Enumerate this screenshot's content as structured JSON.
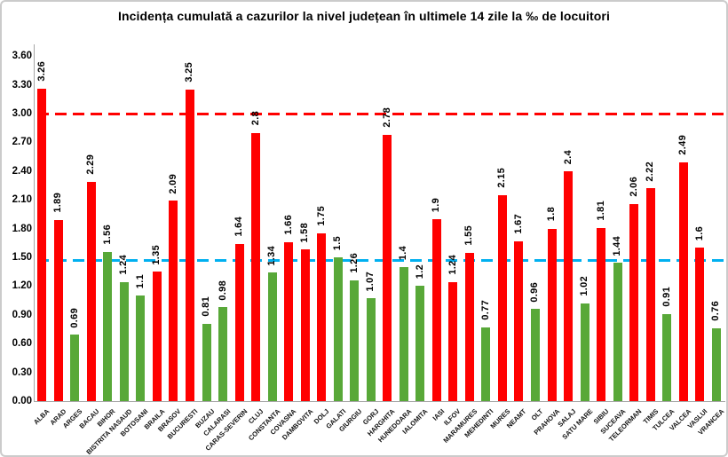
{
  "title": "Incidența cumulată a cazurilor la nivel județean în ultimele 14 zile la ‰ de locuitori",
  "colors": {
    "red": "#FF0000",
    "green": "#58A838",
    "ref_red": "#FF0000",
    "ref_blue": "#00B0F0",
    "axis": "#A6A6A6",
    "text": "#000000",
    "border": "#CBCBCB",
    "background": "#FFFFFF"
  },
  "chart_data": {
    "type": "bar",
    "title": "Incidența cumulată a cazurilor la nivel județean în ultimele 14 zile la ‰ de locuitori",
    "xlabel": "",
    "ylabel": "",
    "ylim": [
      0,
      3.6
    ],
    "ytick_step": 0.3,
    "ytick_labels": [
      "0.00",
      "0.30",
      "0.60",
      "0.90",
      "1.20",
      "1.50",
      "1.80",
      "2.10",
      "2.40",
      "2.70",
      "3.00",
      "3.30",
      "3.60"
    ],
    "grid": false,
    "legend": false,
    "reference_lines": [
      {
        "value": 3.0,
        "color": "#FF0000",
        "style": "dashed"
      },
      {
        "value": 1.47,
        "color": "#00B0F0",
        "style": "dashed"
      }
    ],
    "points": [
      {
        "county": "ALBA",
        "value": 3.26,
        "label": "3.26",
        "color": "red"
      },
      {
        "county": "ARAD",
        "value": 1.89,
        "label": "1.89",
        "color": "red"
      },
      {
        "county": "ARGES",
        "value": 0.69,
        "label": "0.69",
        "color": "green"
      },
      {
        "county": "BACAU",
        "value": 2.29,
        "label": "2.29",
        "color": "red"
      },
      {
        "county": "BIHOR",
        "value": 1.56,
        "label": "1.56",
        "color": "green"
      },
      {
        "county": "BISTRITA NASAUD",
        "value": 1.24,
        "label": "1.24",
        "color": "green"
      },
      {
        "county": "BOTOSANI",
        "value": 1.1,
        "label": "1.1",
        "color": "green"
      },
      {
        "county": "BRAILA",
        "value": 1.35,
        "label": "1.35",
        "color": "red"
      },
      {
        "county": "BRASOV",
        "value": 2.09,
        "label": "2.09",
        "color": "red"
      },
      {
        "county": "BUCURESTI",
        "value": 3.25,
        "label": "3.25",
        "color": "red"
      },
      {
        "county": "BUZAU",
        "value": 0.81,
        "label": "0.81",
        "color": "green"
      },
      {
        "county": "CALARASI",
        "value": 0.98,
        "label": "0.98",
        "color": "green"
      },
      {
        "county": "CARAS-SEVERIN",
        "value": 1.64,
        "label": "1.64",
        "color": "red"
      },
      {
        "county": "CLUJ",
        "value": 2.8,
        "label": "2.8",
        "color": "red"
      },
      {
        "county": "CONSTANTA",
        "value": 1.34,
        "label": "1.34",
        "color": "green"
      },
      {
        "county": "COVASNA",
        "value": 1.66,
        "label": "1.66",
        "color": "red"
      },
      {
        "county": "DAMBOVITA",
        "value": 1.58,
        "label": "1.58",
        "color": "red"
      },
      {
        "county": "DOLJ",
        "value": 1.75,
        "label": "1.75",
        "color": "red"
      },
      {
        "county": "GALATI",
        "value": 1.5,
        "label": "1.5",
        "color": "green"
      },
      {
        "county": "GIURGIU",
        "value": 1.26,
        "label": "1.26",
        "color": "green"
      },
      {
        "county": "GORJ",
        "value": 1.07,
        "label": "1.07",
        "color": "green"
      },
      {
        "county": "HARGHITA",
        "value": 2.78,
        "label": "2.78",
        "color": "red"
      },
      {
        "county": "HUNEDOARA",
        "value": 1.4,
        "label": "1.4",
        "color": "green"
      },
      {
        "county": "IALOMITA",
        "value": 1.2,
        "label": "1.2",
        "color": "green"
      },
      {
        "county": "IASI",
        "value": 1.9,
        "label": "1.9",
        "color": "red"
      },
      {
        "county": "ILFOV",
        "value": 1.24,
        "label": "1.24",
        "color": "red"
      },
      {
        "county": "MARAMURES",
        "value": 1.55,
        "label": "1.55",
        "color": "red"
      },
      {
        "county": "MEHEDINTI",
        "value": 0.77,
        "label": "0.77",
        "color": "green"
      },
      {
        "county": "MURES",
        "value": 2.15,
        "label": "2.15",
        "color": "red"
      },
      {
        "county": "NEAMT",
        "value": 1.67,
        "label": "1.67",
        "color": "red"
      },
      {
        "county": "OLT",
        "value": 0.96,
        "label": "0.96",
        "color": "green"
      },
      {
        "county": "PRAHOVA",
        "value": 1.8,
        "label": "1.8",
        "color": "red"
      },
      {
        "county": "SALAJ",
        "value": 2.4,
        "label": "2.4",
        "color": "red"
      },
      {
        "county": "SATU MARE",
        "value": 1.02,
        "label": "1.02",
        "color": "green"
      },
      {
        "county": "SIBIU",
        "value": 1.81,
        "label": "1.81",
        "color": "red"
      },
      {
        "county": "SUCEAVA",
        "value": 1.44,
        "label": "1.44",
        "color": "green"
      },
      {
        "county": "TELEORMAN",
        "value": 2.06,
        "label": "2.06",
        "color": "red"
      },
      {
        "county": "TIMIS",
        "value": 2.22,
        "label": "2.22",
        "color": "red"
      },
      {
        "county": "TULCEA",
        "value": 0.91,
        "label": "0.91",
        "color": "green"
      },
      {
        "county": "VALCEA",
        "value": 2.49,
        "label": "2.49",
        "color": "red"
      },
      {
        "county": "VASLUI",
        "value": 1.6,
        "label": "1.6",
        "color": "red"
      },
      {
        "county": "VRANCEA",
        "value": 0.76,
        "label": "0.76",
        "color": "green"
      }
    ]
  }
}
